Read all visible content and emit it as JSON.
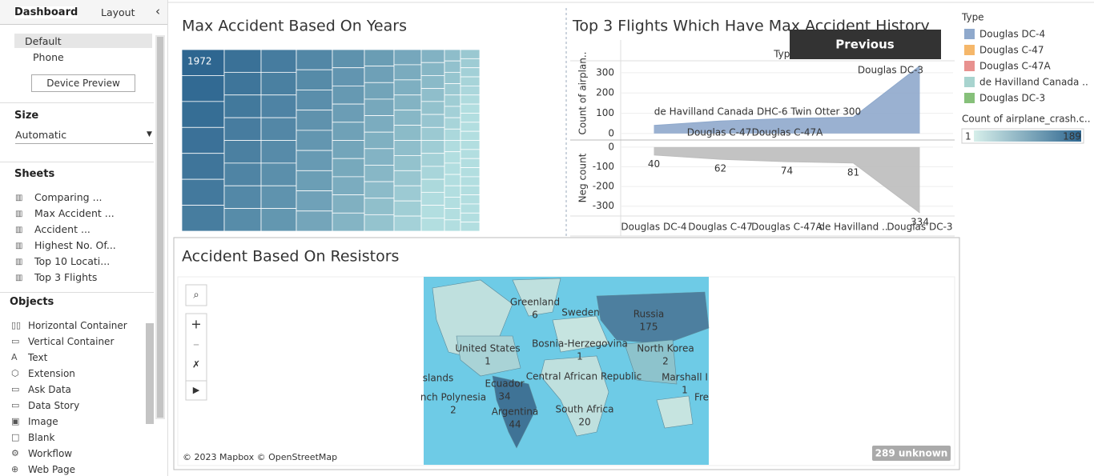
{
  "sidebar": {
    "tabs": [
      "Dashboard",
      "Layout"
    ],
    "devices": [
      "Default",
      "Phone"
    ],
    "device_preview": "Device Preview",
    "size_heading": "Size",
    "size_value": "Automatic",
    "sheets_heading": "Sheets",
    "sheets": [
      "Comparing ...",
      "Max Accident ...",
      "Accident ...",
      "Highest No. Of...",
      "Top 10 Locati...",
      "Top 3 Flights"
    ],
    "objects_heading": "Objects",
    "objects": [
      "Horizontal Container",
      "Vertical Container",
      "Text",
      "Extension",
      "Ask Data",
      "Data Story",
      "Image",
      "Blank",
      "Workflow",
      "Web Page"
    ]
  },
  "treemap": {
    "title": "Max Accident Based On Years",
    "label": "1972"
  },
  "chart_data": {
    "type": "area",
    "title": "Top 3 Flights Which Have Max Accident History",
    "column_header": "Type",
    "categories": [
      "Douglas DC-4",
      "Douglas C-47",
      "Douglas C-47A",
      "de Havilland ..",
      "Douglas DC-3"
    ],
    "series": [
      {
        "name": "Count of airplan..",
        "color": "#8fa9cc",
        "values": [
          40,
          62,
          74,
          81,
          334
        ]
      },
      {
        "name": "Neg count",
        "color": "#bdbdbd",
        "axis": "y2",
        "values": [
          -40,
          -62,
          -74,
          -81,
          -334
        ],
        "value_labels": [
          "40",
          "62",
          "74",
          "81",
          "334"
        ]
      }
    ],
    "annotations": [
      "de Havilland Canada DHC-6 Twin Otter 300",
      "Douglas C-47",
      "Douglas C-47A",
      "Douglas DC-3"
    ],
    "ylim": [
      -32,
      430
    ],
    "yticks": [
      0,
      100,
      200,
      300
    ],
    "y2lim": [
      -350,
      36
    ],
    "y2ticks": [
      0,
      -100,
      -200,
      -300
    ],
    "grid": true
  },
  "previous_button": "Previous",
  "legend": {
    "title": "Type",
    "items": [
      {
        "name": "Douglas DC-4",
        "color": "#8fa9cc"
      },
      {
        "name": "Douglas C-47",
        "color": "#f5b76a"
      },
      {
        "name": "Douglas C-47A",
        "color": "#e8918f"
      },
      {
        "name": "de Havilland Canada ..",
        "color": "#a8d4cf"
      },
      {
        "name": "Douglas DC-3",
        "color": "#86c07a"
      }
    ]
  },
  "color_legend": {
    "title": "Count of airplane_crash.c..",
    "min": 1,
    "max": 189
  },
  "map": {
    "title": "Accident Based On Resistors",
    "labels": [
      {
        "name": "Greenland",
        "value": 6
      },
      {
        "name": "Sweden"
      },
      {
        "name": "Russia",
        "value": 175
      },
      {
        "name": "United States",
        "value": 1
      },
      {
        "name": "Bosnia-Herzegovina",
        "value": 1
      },
      {
        "name": "North Korea",
        "value": 2
      },
      {
        "name": "Central African Republic"
      },
      {
        "name": "Ecuador",
        "value": 34
      },
      {
        "name": "Argentina",
        "value": 44
      },
      {
        "name": "South Africa",
        "value": 20
      },
      {
        "name": "slands"
      },
      {
        "name": "nch Polynesia",
        "value": 2
      },
      {
        "name": "Marshall I",
        "value": 1
      },
      {
        "name": "Fre"
      }
    ],
    "credit": "© 2023 Mapbox © OpenStreetMap",
    "unknown": "289 unknown"
  }
}
